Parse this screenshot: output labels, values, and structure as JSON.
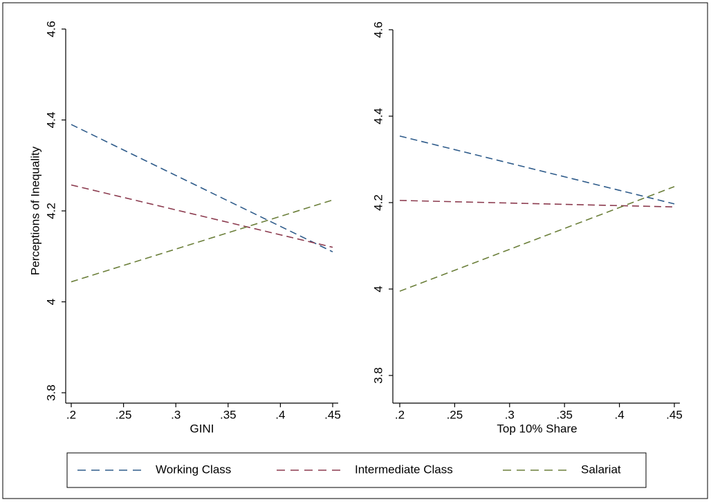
{
  "chart_data": [
    {
      "type": "line",
      "xlabel": "GINI",
      "ylabel": "Perceptions of Inequality",
      "x": [
        0.2,
        0.45
      ],
      "xlim": [
        0.2,
        0.45
      ],
      "xticks": [
        {
          "value": 0.2,
          "label": ".2"
        },
        {
          "value": 0.25,
          "label": ".25"
        },
        {
          "value": 0.3,
          "label": ".3"
        },
        {
          "value": 0.35,
          "label": ".35"
        },
        {
          "value": 0.4,
          "label": ".4"
        },
        {
          "value": 0.45,
          "label": ".45"
        }
      ],
      "ylim": [
        3.8,
        4.6
      ],
      "yticks": [
        3.8,
        4,
        4.2,
        4.4,
        4.6
      ],
      "series": [
        {
          "name": "Working Class",
          "color": "#2e5b8a",
          "values": [
            4.39,
            4.11
          ]
        },
        {
          "name": "Intermediate Class",
          "color": "#8b3a4e",
          "values": [
            4.257,
            4.12
          ]
        },
        {
          "name": "Salariat",
          "color": "#6b7f3a",
          "values": [
            4.044,
            4.224
          ]
        }
      ]
    },
    {
      "type": "line",
      "xlabel": "Top 10% Share",
      "x": [
        0.2,
        0.45
      ],
      "xlim": [
        0.2,
        0.45
      ],
      "xticks": [
        {
          "value": 0.2,
          "label": ".2"
        },
        {
          "value": 0.25,
          "label": ".25"
        },
        {
          "value": 0.3,
          "label": ".3"
        },
        {
          "value": 0.35,
          "label": ".35"
        },
        {
          "value": 0.4,
          "label": ".4"
        },
        {
          "value": 0.45,
          "label": ".45"
        }
      ],
      "ylim": [
        3.8,
        4.6
      ],
      "yticks": [
        3.8,
        4,
        4.2,
        4.4,
        4.6
      ],
      "series": [
        {
          "color": "#2e5b8a",
          "values": [
            4.354,
            4.197
          ]
        },
        {
          "color": "#8b3a4e",
          "values": [
            4.205,
            4.19
          ]
        },
        {
          "color": "#6b7f3a",
          "values": [
            3.995,
            4.237
          ]
        }
      ]
    }
  ]
}
